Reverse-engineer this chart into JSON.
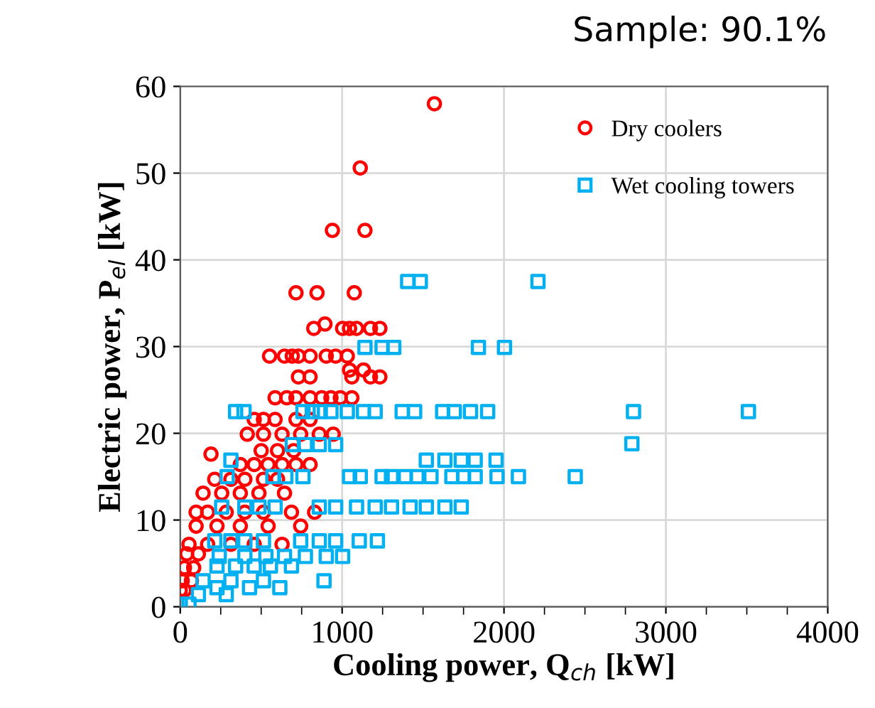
{
  "chart_data": {
    "type": "scatter",
    "title": "Sample: 90.1%",
    "xlabel": "Cooling power, Q$_{ch}$ [kW]",
    "ylabel": "Electric power, P$_{el}$ [kW]",
    "xlim": [
      0,
      4000
    ],
    "ylim": [
      0,
      60
    ],
    "xticks": [
      0,
      {
        "value": 250,
        "label": null
      },
      {
        "value": 500,
        "label": null
      },
      {
        "value": 750,
        "label": null
      },
      1000,
      {
        "value": 1250,
        "label": null
      },
      {
        "value": 1500,
        "label": null
      },
      {
        "value": 1750,
        "label": null
      },
      2000,
      {
        "value": 2250,
        "label": null
      },
      {
        "value": 2500,
        "label": null
      },
      {
        "value": 2750,
        "label": null
      },
      3000,
      {
        "value": 3250,
        "label": null
      },
      {
        "value": 3500,
        "label": null
      },
      {
        "value": 3750,
        "label": null
      },
      4000
    ],
    "yticks": [
      0,
      10,
      20,
      30,
      40,
      50,
      60
    ],
    "grid": true,
    "legend": "top right",
    "series": [
      {
        "name": "Dry coolers",
        "color": "#ff0000",
        "marker": "circle",
        "x": [
          1570,
          1112,
          940,
          1141,
          715,
          845,
          1075,
          825,
          894,
          1003,
          1046,
          1089,
          1175,
          1233,
          552,
          644,
          692,
          730,
          802,
          902,
          960,
          1032,
          1046,
          1132,
          730,
          802,
          1060,
          1175,
          1233,
          586,
          658,
          715,
          802,
          874,
          931,
          989,
          1060,
          457,
          514,
          586,
          715,
          802,
          414,
          514,
          629,
          744,
          859,
          945,
          500,
          601,
          701,
          190,
          371,
          457,
          543,
          629,
          715,
          802,
          213,
          313,
          399,
          514,
          601,
          141,
          256,
          371,
          486,
          644,
          98,
          169,
          284,
          399,
          514,
          687,
          830,
          98,
          227,
          371,
          543,
          744,
          54,
          169,
          313,
          457,
          629,
          40,
          112,
          26,
          83,
          12,
          69,
          0,
          26
        ],
        "values": [
          58,
          50.6,
          43.4,
          43.4,
          36.2,
          36.2,
          36.2,
          32.1,
          32.6,
          32.1,
          32.1,
          32.1,
          32.1,
          32.1,
          28.9,
          28.9,
          28.9,
          28.9,
          28.9,
          28.9,
          28.9,
          28.9,
          27.3,
          27.3,
          26.5,
          26.5,
          26.5,
          26.5,
          26.5,
          24.1,
          24.1,
          24.1,
          24.1,
          24.1,
          24.1,
          24.1,
          24.1,
          21.6,
          21.6,
          21.6,
          21.6,
          21.6,
          19.9,
          19.9,
          19.9,
          19.9,
          19.9,
          19.9,
          18,
          18,
          18,
          17.6,
          16.4,
          16.4,
          16.4,
          16.4,
          16.4,
          16.4,
          14.7,
          14.7,
          14.7,
          14.7,
          14.7,
          13.1,
          13.1,
          13.1,
          13.1,
          13.1,
          10.9,
          10.9,
          10.9,
          10.9,
          10.9,
          10.9,
          10.9,
          9.3,
          9.3,
          9.3,
          9.3,
          9.3,
          7.2,
          7.2,
          7.2,
          7.2,
          7.2,
          6.1,
          6.1,
          4.5,
          4.5,
          3,
          3,
          1.9,
          1.9
        ]
      },
      {
        "name": "Wet cooling towers",
        "color": "#00b0f0",
        "marker": "square",
        "x": [
          1405,
          1483,
          2210,
          1141,
          1247,
          1319,
          1842,
          2003,
          342,
          394,
          758,
          816,
          865,
          931,
          1032,
          1132,
          1204,
          1371,
          1448,
          1621,
          1693,
          1793,
          1899,
          2800,
          3510,
          692,
          773,
          859,
          960,
          2790,
          313,
          1520,
          1635,
          1736,
          1822,
          1951,
          290,
          572,
          652,
          758,
          1046,
          1112,
          1247,
          1305,
          1391,
          1463,
          1549,
          1678,
          1750,
          1822,
          1957,
          2089,
          2440,
          256,
          399,
          486,
          586,
          859,
          960,
          1089,
          1204,
          1305,
          1420,
          1520,
          1635,
          1736,
          213,
          313,
          399,
          514,
          744,
          859,
          960,
          1106,
          1218,
          241,
          399,
          529,
          644,
          773,
          902,
          1003,
          227,
          342,
          457,
          557,
          687,
          141,
          313,
          514,
          888,
          227,
          428,
          615,
          112,
          284,
          0,
          54
        ],
        "values": [
          37.5,
          37.5,
          37.5,
          29.9,
          29.9,
          29.9,
          29.9,
          29.9,
          22.5,
          22.5,
          22.5,
          22.5,
          22.5,
          22.5,
          22.5,
          22.5,
          22.5,
          22.5,
          22.5,
          22.5,
          22.5,
          22.5,
          22.5,
          22.5,
          22.5,
          18.7,
          18.7,
          18.7,
          18.7,
          18.8,
          16.9,
          16.9,
          16.9,
          16.9,
          16.9,
          16.9,
          15,
          15,
          15,
          15,
          15,
          15,
          15,
          15,
          15,
          15,
          15,
          15,
          15,
          15,
          15,
          15,
          15,
          11.5,
          11.5,
          11.5,
          11.5,
          11.5,
          11.5,
          11.5,
          11.5,
          11.5,
          11.5,
          11.5,
          11.5,
          11.5,
          7.6,
          7.6,
          7.6,
          7.6,
          7.6,
          7.6,
          7.6,
          7.6,
          7.6,
          5.8,
          5.8,
          5.8,
          5.8,
          5.8,
          5.8,
          5.8,
          4.7,
          4.7,
          4.7,
          4.7,
          4.7,
          3,
          3,
          3,
          3,
          2.2,
          2.2,
          2.2,
          1.4,
          1.4,
          0.3,
          0.3
        ]
      }
    ]
  }
}
